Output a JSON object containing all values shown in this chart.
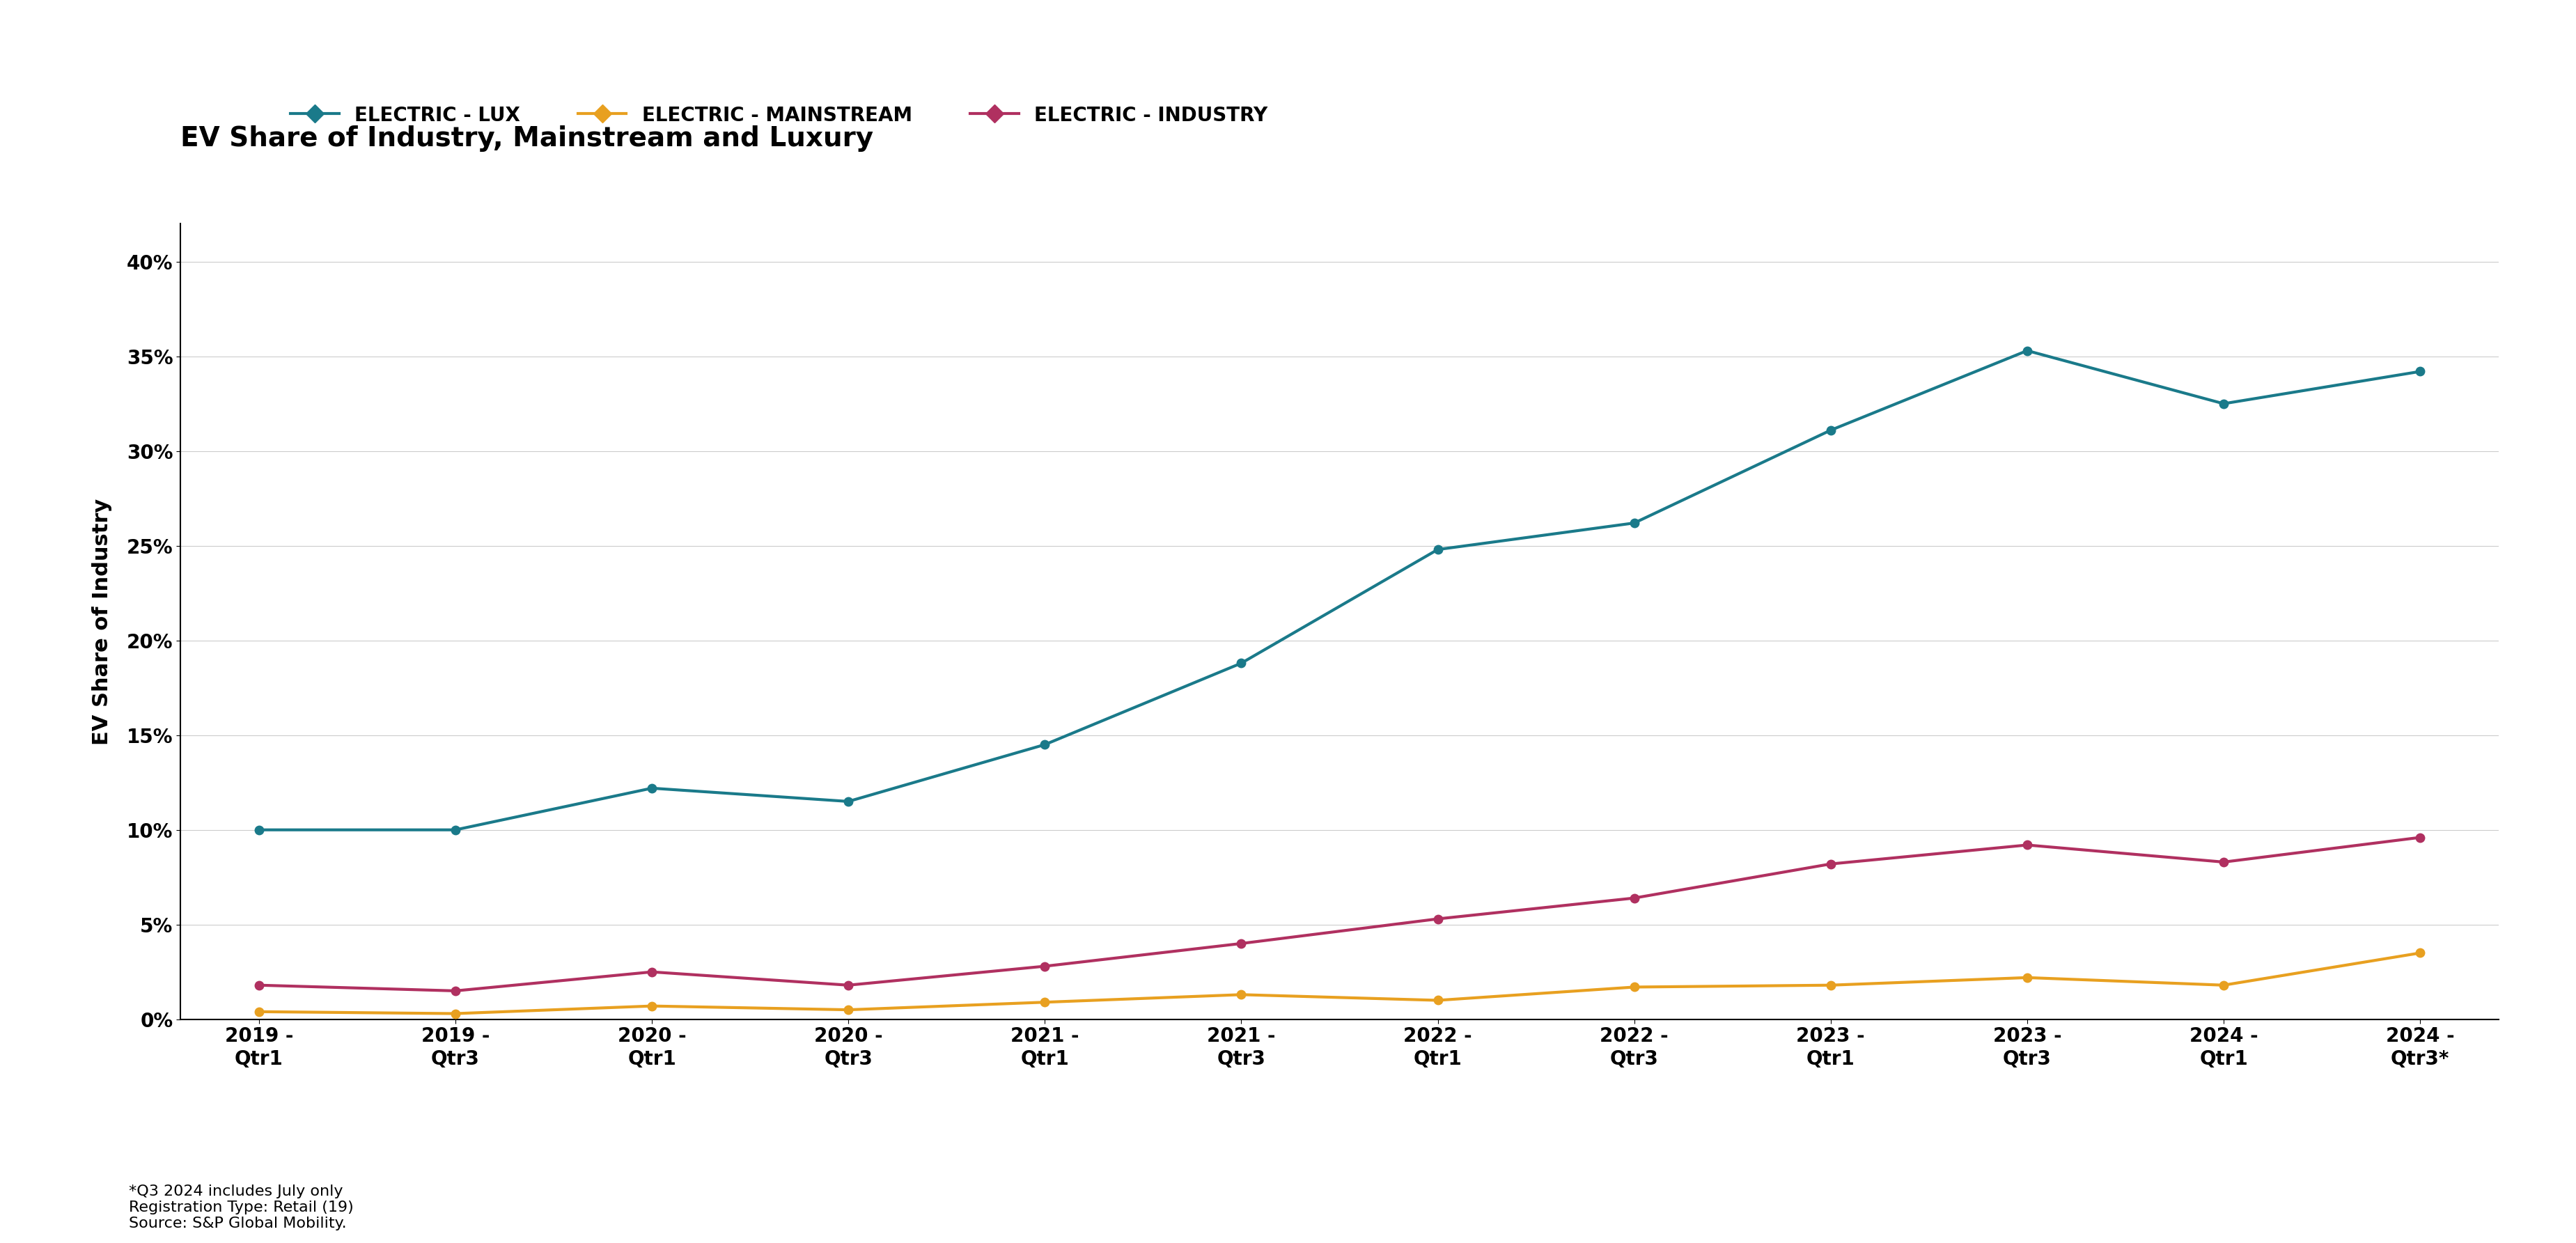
{
  "title": "EV Share of Industry, Mainstream and Luxury",
  "ylabel": "EV Share of Industry",
  "footnotes": [
    "*Q3 2024 includes July only",
    "Registration Type: Retail (19)",
    "Source: S&P Global Mobility."
  ],
  "x_labels": [
    "2019 -\nQtr1",
    "2019 -\nQtr3",
    "2020 -\nQtr1",
    "2020 -\nQtr3",
    "2021 -\nQtr1",
    "2021 -\nQtr3",
    "2022 -\nQtr1",
    "2022 -\nQtr3",
    "2023 -\nQtr1",
    "2023 -\nQtr3",
    "2024 -\nQtr1",
    "2024 -\nQtr3*"
  ],
  "series": [
    {
      "label": "ELECTRIC - LUX",
      "color": "#1a7a8a",
      "values": [
        0.1,
        0.1,
        0.122,
        0.115,
        0.145,
        0.188,
        0.248,
        0.262,
        0.311,
        0.353,
        0.325,
        0.342
      ]
    },
    {
      "label": "ELECTRIC - MAINSTREAM",
      "color": "#e8a020",
      "values": [
        0.004,
        0.003,
        0.007,
        0.005,
        0.009,
        0.013,
        0.01,
        0.017,
        0.018,
        0.022,
        0.018,
        0.035
      ]
    },
    {
      "label": "ELECTRIC - INDUSTRY",
      "color": "#b03060",
      "values": [
        0.018,
        0.015,
        0.025,
        0.018,
        0.028,
        0.04,
        0.053,
        0.064,
        0.082,
        0.092,
        0.083,
        0.096
      ]
    }
  ],
  "ylim": [
    0.0,
    0.42
  ],
  "yticks": [
    0.0,
    0.05,
    0.1,
    0.15,
    0.2,
    0.25,
    0.3,
    0.35,
    0.4
  ],
  "background_color": "#ffffff",
  "title_fontsize": 28,
  "legend_fontsize": 20,
  "axis_label_fontsize": 22,
  "tick_fontsize": 20,
  "footnote_fontsize": 16,
  "line_width": 3.0,
  "marker_size": 9
}
